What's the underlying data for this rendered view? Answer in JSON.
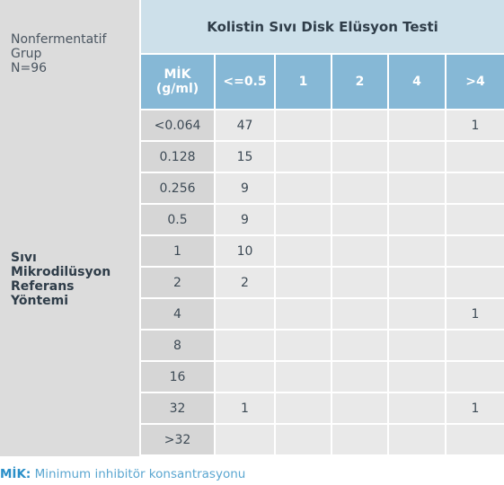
{
  "corner_label": {
    "line1": "Nonfermentatif",
    "line2": "Grup",
    "line3": "N=96"
  },
  "row_group_label": {
    "line1": "Sıvı",
    "line2": "Mikrodilüsyon",
    "line3": "Referans",
    "line4": "Yöntemi"
  },
  "table_title": "Kolistin Sıvı Disk Elüsyon Testi",
  "mic_header": {
    "line1": "MİK",
    "line2": "(g/ml)"
  },
  "columns": [
    "<=0.5",
    "1",
    "2",
    "4",
    ">4"
  ],
  "rows": [
    {
      "mic": "<0.064",
      "values": [
        "47",
        "",
        "",
        "",
        "1"
      ]
    },
    {
      "mic": "0.128",
      "values": [
        "15",
        "",
        "",
        "",
        ""
      ]
    },
    {
      "mic": "0.256",
      "values": [
        "9",
        "",
        "",
        "",
        ""
      ]
    },
    {
      "mic": "0.5",
      "values": [
        "9",
        "",
        "",
        "",
        ""
      ]
    },
    {
      "mic": "1",
      "values": [
        "10",
        "",
        "",
        "",
        ""
      ]
    },
    {
      "mic": "2",
      "values": [
        "2",
        "",
        "",
        "",
        ""
      ]
    },
    {
      "mic": "4",
      "values": [
        "",
        "",
        "",
        "",
        "1"
      ]
    },
    {
      "mic": "8",
      "values": [
        "",
        "",
        "",
        "",
        ""
      ]
    },
    {
      "mic": "16",
      "values": [
        "",
        "",
        "",
        "",
        ""
      ]
    },
    {
      "mic": "32",
      "values": [
        "1",
        "",
        "",
        "",
        "1"
      ]
    },
    {
      "mic": ">32",
      "values": [
        "",
        "",
        "",
        "",
        ""
      ]
    }
  ],
  "footer": {
    "abbr": "MİK:",
    "text": " Minimum inhibitör konsantrasyonu"
  }
}
